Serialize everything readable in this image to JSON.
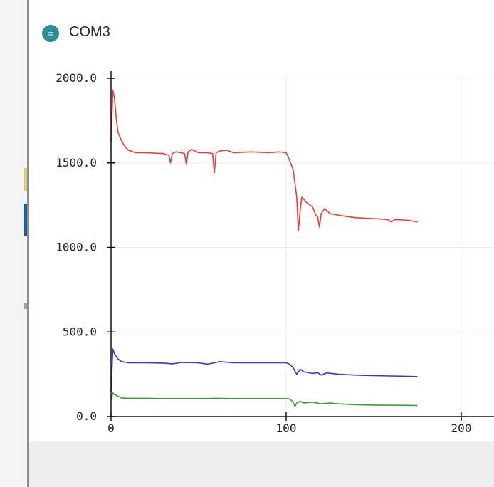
{
  "window": {
    "title": "COM3",
    "icon": "arduino-infinity-icon",
    "icon_glyph": "∞"
  },
  "chart_data": {
    "type": "line",
    "title": "",
    "xlabel": "",
    "ylabel": "",
    "xlim": [
      0,
      215
    ],
    "ylim": [
      0,
      2000
    ],
    "x_ticks": [
      "0",
      "100",
      "200"
    ],
    "x_tick_values": [
      0,
      100,
      200
    ],
    "y_ticks": [
      "0.0",
      "500.0",
      "1000.0",
      "1500.0",
      "2000.0"
    ],
    "y_tick_values": [
      0,
      500,
      1000,
      1500,
      2000
    ],
    "grid": true,
    "series": [
      {
        "color": "#ef3b36",
        "points": [
          [
            0,
            1620
          ],
          [
            1,
            1930
          ],
          [
            2,
            1880
          ],
          [
            3,
            1760
          ],
          [
            4,
            1680
          ],
          [
            6,
            1630
          ],
          [
            8,
            1595
          ],
          [
            10,
            1575
          ],
          [
            14,
            1560
          ],
          [
            20,
            1560
          ],
          [
            30,
            1555
          ],
          [
            33,
            1545
          ],
          [
            34,
            1500
          ],
          [
            35,
            1555
          ],
          [
            37,
            1565
          ],
          [
            40,
            1560
          ],
          [
            42,
            1555
          ],
          [
            43,
            1490
          ],
          [
            44,
            1565
          ],
          [
            46,
            1580
          ],
          [
            50,
            1560
          ],
          [
            55,
            1560
          ],
          [
            58,
            1555
          ],
          [
            59,
            1440
          ],
          [
            60,
            1560
          ],
          [
            62,
            1570
          ],
          [
            66,
            1575
          ],
          [
            70,
            1560
          ],
          [
            80,
            1565
          ],
          [
            90,
            1560
          ],
          [
            96,
            1565
          ],
          [
            100,
            1560
          ],
          [
            101,
            1540
          ],
          [
            104,
            1460
          ],
          [
            105,
            1380
          ],
          [
            106,
            1300
          ],
          [
            107,
            1100
          ],
          [
            108,
            1220
          ],
          [
            109,
            1300
          ],
          [
            111,
            1270
          ],
          [
            115,
            1240
          ],
          [
            117,
            1190
          ],
          [
            118,
            1180
          ],
          [
            119,
            1120
          ],
          [
            120,
            1200
          ],
          [
            122,
            1230
          ],
          [
            125,
            1200
          ],
          [
            130,
            1190
          ],
          [
            140,
            1175
          ],
          [
            150,
            1170
          ],
          [
            158,
            1165
          ],
          [
            160,
            1150
          ],
          [
            162,
            1165
          ],
          [
            170,
            1160
          ],
          [
            175,
            1150
          ]
        ]
      },
      {
        "color": "#3532e6",
        "points": [
          [
            0,
            150
          ],
          [
            1,
            400
          ],
          [
            2,
            370
          ],
          [
            4,
            340
          ],
          [
            6,
            325
          ],
          [
            10,
            318
          ],
          [
            20,
            318
          ],
          [
            30,
            316
          ],
          [
            35,
            312
          ],
          [
            40,
            320
          ],
          [
            50,
            318
          ],
          [
            55,
            310
          ],
          [
            60,
            320
          ],
          [
            62,
            325
          ],
          [
            70,
            318
          ],
          [
            80,
            318
          ],
          [
            90,
            318
          ],
          [
            100,
            318
          ],
          [
            102,
            310
          ],
          [
            104,
            290
          ],
          [
            106,
            250
          ],
          [
            108,
            280
          ],
          [
            110,
            265
          ],
          [
            115,
            255
          ],
          [
            118,
            260
          ],
          [
            120,
            245
          ],
          [
            123,
            258
          ],
          [
            130,
            250
          ],
          [
            140,
            245
          ],
          [
            150,
            242
          ],
          [
            160,
            240
          ],
          [
            170,
            238
          ],
          [
            175,
            236
          ]
        ]
      },
      {
        "color": "#3d9b35",
        "points": [
          [
            0,
            100
          ],
          [
            1,
            140
          ],
          [
            2,
            130
          ],
          [
            4,
            120
          ],
          [
            6,
            110
          ],
          [
            10,
            108
          ],
          [
            20,
            108
          ],
          [
            30,
            106
          ],
          [
            40,
            106
          ],
          [
            50,
            106
          ],
          [
            60,
            108
          ],
          [
            70,
            106
          ],
          [
            80,
            106
          ],
          [
            90,
            106
          ],
          [
            100,
            106
          ],
          [
            102,
            104
          ],
          [
            104,
            85
          ],
          [
            105,
            60
          ],
          [
            106,
            80
          ],
          [
            108,
            90
          ],
          [
            110,
            80
          ],
          [
            115,
            85
          ],
          [
            120,
            75
          ],
          [
            125,
            80
          ],
          [
            130,
            75
          ],
          [
            140,
            70
          ],
          [
            150,
            68
          ],
          [
            160,
            67
          ],
          [
            170,
            66
          ],
          [
            175,
            65
          ]
        ]
      }
    ]
  }
}
